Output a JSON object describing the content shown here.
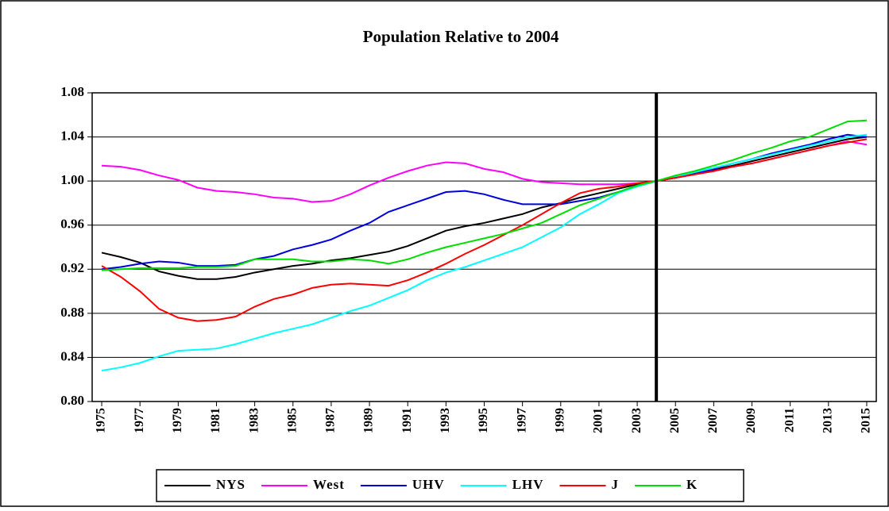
{
  "chart_data": {
    "type": "line",
    "title": "Population Relative to 2004",
    "x": [
      1975,
      1976,
      1977,
      1978,
      1979,
      1980,
      1981,
      1982,
      1983,
      1984,
      1985,
      1986,
      1987,
      1988,
      1989,
      1990,
      1991,
      1992,
      1993,
      1994,
      1995,
      1996,
      1997,
      1998,
      1999,
      2000,
      2001,
      2002,
      2003,
      2004,
      2005,
      2006,
      2007,
      2008,
      2009,
      2010,
      2011,
      2012,
      2013,
      2014,
      2015
    ],
    "xlim": [
      1974.5,
      2015.5
    ],
    "xticks": [
      1975,
      1977,
      1979,
      1981,
      1983,
      1985,
      1987,
      1989,
      1991,
      1993,
      1995,
      1997,
      1999,
      2001,
      2003,
      2005,
      2007,
      2009,
      2011,
      2013,
      2015
    ],
    "ylim": [
      0.8,
      1.08
    ],
    "yticks": [
      {
        "value": 0.8,
        "label": "0.80"
      },
      {
        "value": 0.84,
        "label": "0.84"
      },
      {
        "value": 0.88,
        "label": "0.88"
      },
      {
        "value": 0.92,
        "label": "0.92"
      },
      {
        "value": 0.96,
        "label": "0.96"
      },
      {
        "value": 1.0,
        "label": "1.00"
      },
      {
        "value": 1.04,
        "label": "1.04"
      },
      {
        "value": 1.08,
        "label": "1.08"
      }
    ],
    "grid": true,
    "vline": 2004,
    "legend": "bottom",
    "series": [
      {
        "name": "NYS",
        "color": "#000000",
        "values": [
          0.935,
          0.931,
          0.926,
          0.918,
          0.914,
          0.911,
          0.911,
          0.913,
          0.917,
          0.92,
          0.923,
          0.925,
          0.928,
          0.93,
          0.933,
          0.936,
          0.941,
          0.948,
          0.955,
          0.959,
          0.962,
          0.966,
          0.97,
          0.976,
          0.98,
          0.985,
          0.989,
          0.993,
          0.997,
          1.0,
          1.003,
          1.006,
          1.01,
          1.014,
          1.018,
          1.022,
          1.026,
          1.03,
          1.034,
          1.038,
          1.04
        ]
      },
      {
        "name": "West",
        "color": "#ff00ff",
        "values": [
          1.014,
          1.013,
          1.01,
          1.005,
          1.001,
          0.994,
          0.991,
          0.99,
          0.988,
          0.985,
          0.984,
          0.981,
          0.982,
          0.988,
          0.996,
          1.003,
          1.009,
          1.014,
          1.017,
          1.016,
          1.011,
          1.008,
          1.002,
          0.999,
          0.998,
          0.997,
          0.997,
          0.997,
          0.998,
          1.0,
          1.003,
          1.006,
          1.009,
          1.013,
          1.016,
          1.02,
          1.024,
          1.028,
          1.032,
          1.036,
          1.033
        ]
      },
      {
        "name": "UHV",
        "color": "#0000dd",
        "values": [
          0.92,
          0.922,
          0.925,
          0.927,
          0.926,
          0.923,
          0.923,
          0.924,
          0.929,
          0.932,
          0.938,
          0.942,
          0.947,
          0.955,
          0.962,
          0.972,
          0.978,
          0.984,
          0.99,
          0.991,
          0.988,
          0.983,
          0.979,
          0.979,
          0.979,
          0.982,
          0.985,
          0.99,
          0.995,
          1.0,
          1.003,
          1.007,
          1.011,
          1.016,
          1.02,
          1.025,
          1.029,
          1.033,
          1.038,
          1.042,
          1.04
        ]
      },
      {
        "name": "LHV",
        "color": "#00ffff",
        "values": [
          0.828,
          0.831,
          0.835,
          0.841,
          0.846,
          0.847,
          0.848,
          0.852,
          0.857,
          0.862,
          0.866,
          0.87,
          0.876,
          0.882,
          0.887,
          0.894,
          0.901,
          0.91,
          0.917,
          0.922,
          0.928,
          0.934,
          0.94,
          0.949,
          0.958,
          0.97,
          0.979,
          0.989,
          0.995,
          1.0,
          1.004,
          1.008,
          1.012,
          1.016,
          1.02,
          1.024,
          1.028,
          1.032,
          1.036,
          1.04,
          1.042
        ]
      },
      {
        "name": "J",
        "color": "#ff0000",
        "values": [
          0.923,
          0.913,
          0.9,
          0.884,
          0.876,
          0.873,
          0.874,
          0.877,
          0.886,
          0.893,
          0.897,
          0.903,
          0.906,
          0.907,
          0.906,
          0.905,
          0.91,
          0.917,
          0.925,
          0.934,
          0.942,
          0.951,
          0.96,
          0.97,
          0.98,
          0.989,
          0.993,
          0.995,
          0.998,
          1.0,
          1.003,
          1.006,
          1.009,
          1.013,
          1.016,
          1.02,
          1.024,
          1.028,
          1.032,
          1.035,
          1.038
        ]
      },
      {
        "name": "K",
        "color": "#00dd00",
        "values": [
          0.919,
          0.92,
          0.921,
          0.921,
          0.921,
          0.922,
          0.922,
          0.923,
          0.929,
          0.929,
          0.929,
          0.927,
          0.927,
          0.929,
          0.928,
          0.925,
          0.929,
          0.935,
          0.94,
          0.944,
          0.948,
          0.952,
          0.957,
          0.962,
          0.97,
          0.978,
          0.984,
          0.99,
          0.996,
          1.0,
          1.005,
          1.009,
          1.014,
          1.019,
          1.025,
          1.03,
          1.036,
          1.04,
          1.047,
          1.054,
          1.055
        ]
      }
    ]
  }
}
